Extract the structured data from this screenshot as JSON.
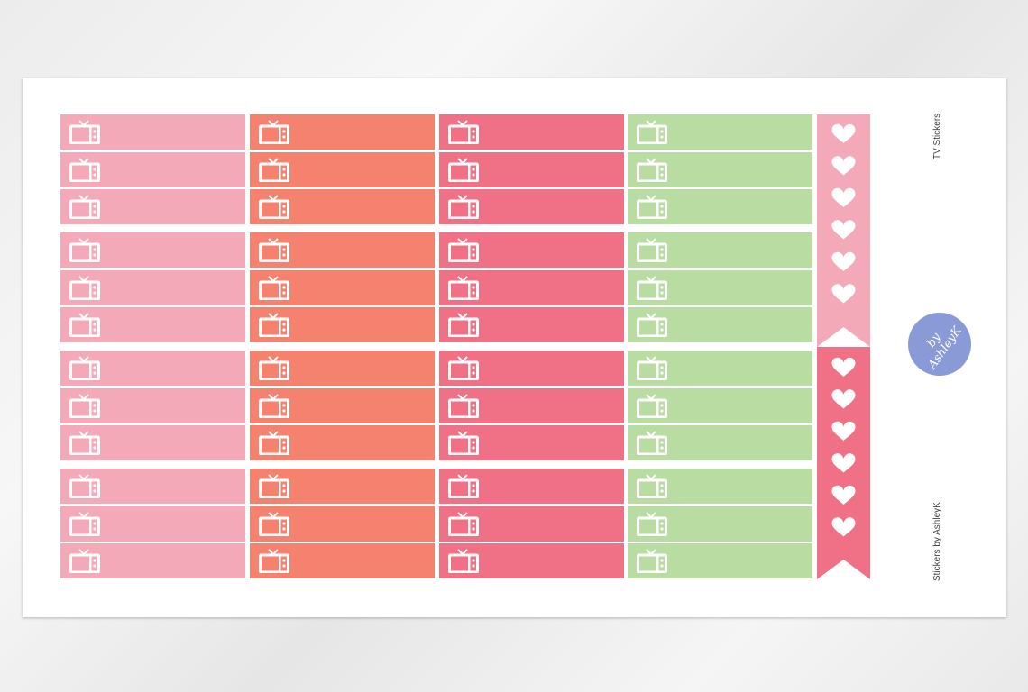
{
  "sheet": {
    "title": "TV Stickers",
    "brand": "Stickers by AshleyK",
    "logo_text": "by AshleyK"
  },
  "stickers": {
    "icon": "tv-icon",
    "columns": [
      {
        "color": "#f4a9b8"
      },
      {
        "color": "#f5826f"
      },
      {
        "color": "#f07085"
      },
      {
        "color": "#b8dca2"
      }
    ],
    "groups": 4,
    "rows_per_group": 3
  },
  "banner": {
    "icon": "heart-icon",
    "top_color": "#f4a9b8",
    "bottom_color": "#f07085",
    "hearts_top": 6,
    "hearts_bottom": 6
  }
}
